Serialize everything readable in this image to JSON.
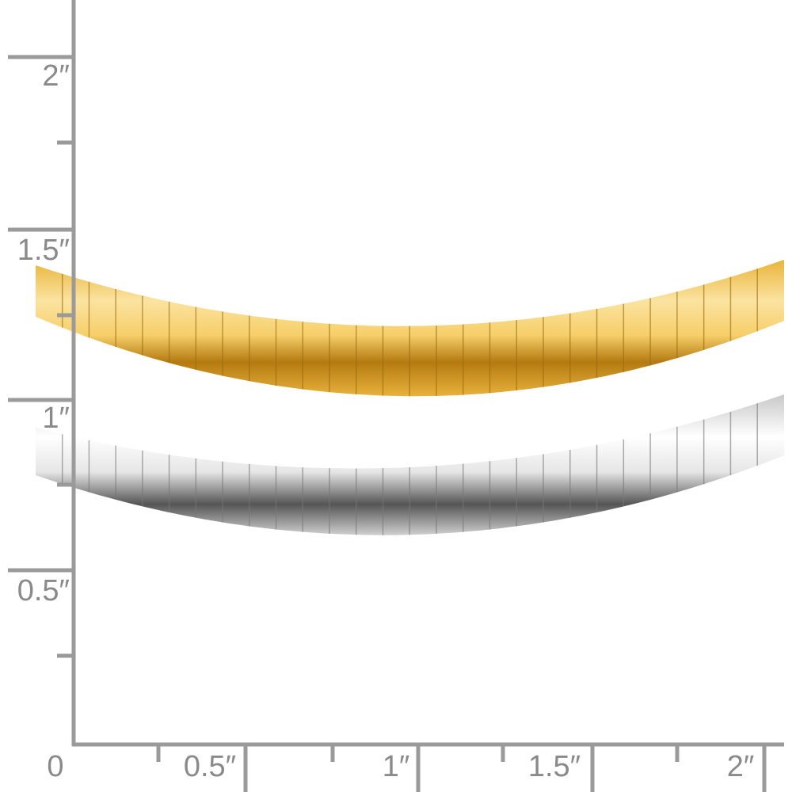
{
  "ruler": {
    "vertical_labels": [
      "2″",
      "1.5″",
      "1″",
      "0.5″"
    ],
    "horizontal_labels": [
      "0",
      "0.5″",
      "1″",
      "1.5″",
      "2″"
    ]
  }
}
